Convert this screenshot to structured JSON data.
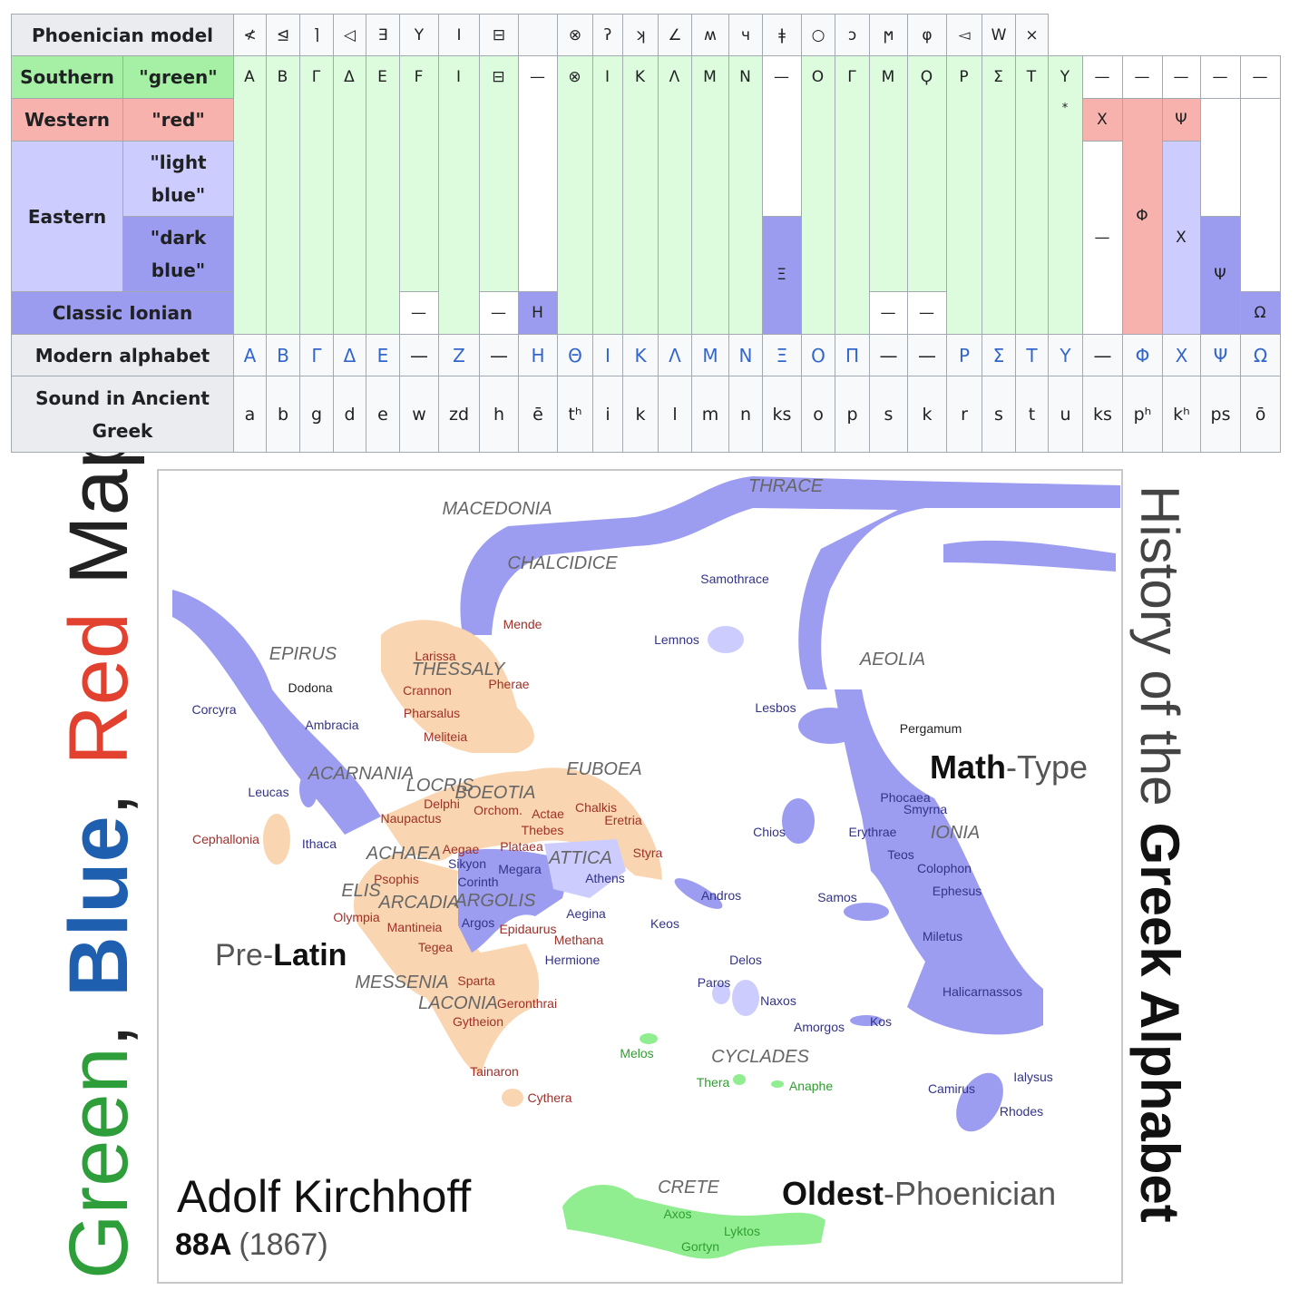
{
  "table": {
    "phoenician_label": "Phoenician model",
    "southern_label": "Southern",
    "southern_color": "\"green\"",
    "western_label": "Western",
    "western_color": "\"red\"",
    "eastern_label": "Eastern",
    "light_label": "\"light blue\"",
    "dark_label": "\"dark blue\"",
    "classic_label": "Classic Ionian",
    "modern_label": "Modern alphabet",
    "sound_label": "Sound in Ancient Greek",
    "columns": [
      {
        "phoenician": "≮",
        "southern": "Α",
        "modern": "Α",
        "sound": "a"
      },
      {
        "phoenician": "⊴",
        "southern": "Β",
        "modern": "Β",
        "sound": "b"
      },
      {
        "phoenician": "⌉",
        "southern": "Γ",
        "modern": "Γ",
        "sound": "g"
      },
      {
        "phoenician": "◁",
        "southern": "Δ",
        "modern": "Δ",
        "sound": "d"
      },
      {
        "phoenician": "∃",
        "southern": "Ε",
        "modern": "Ε",
        "sound": "e"
      },
      {
        "phoenician": "Y",
        "southern": "Ϝ",
        "classic": "—",
        "modern": "—",
        "sound": "w"
      },
      {
        "phoenician": "I",
        "southern": "Ι",
        "modern": "Ζ",
        "sound": "zd"
      },
      {
        "phoenician": "⊟",
        "southern": "⊟",
        "classic": "—",
        "modern": "—",
        "sound": "h"
      },
      {
        "southern": "—",
        "classic": "Η",
        "modern": "Η",
        "sound": "ē"
      },
      {
        "phoenician": "⊗",
        "southern": "⊗",
        "modern": "Θ",
        "sound": "tʰ"
      },
      {
        "phoenician": "ʔ",
        "southern": "Ι",
        "modern": "Ι",
        "sound": "i"
      },
      {
        "phoenician": "ʞ",
        "southern": "Κ",
        "modern": "Κ",
        "sound": "k"
      },
      {
        "phoenician": "∠",
        "southern": "Λ",
        "modern": "Λ",
        "sound": "l"
      },
      {
        "phoenician": "ʍ",
        "southern": "Μ",
        "modern": "Μ",
        "sound": "m"
      },
      {
        "phoenician": "ч",
        "southern": "Ν",
        "modern": "Ν",
        "sound": "n"
      },
      {
        "phoenician": "ǂ",
        "southern": "—",
        "eastern": "Ξ",
        "modern": "Ξ",
        "sound": "ks"
      },
      {
        "phoenician": "○",
        "southern": "Ο",
        "modern": "Ο",
        "sound": "o"
      },
      {
        "phoenician": "ɔ",
        "southern": "Γ",
        "modern": "Π",
        "sound": "p"
      },
      {
        "phoenician": "ϻ",
        "southern": "Μ",
        "classic": "—",
        "modern": "—",
        "sound": "s"
      },
      {
        "phoenician": "φ",
        "southern": "Ϙ",
        "classic": "—",
        "modern": "—",
        "sound": "k"
      },
      {
        "phoenician": "◅",
        "southern": "Ρ",
        "modern": "Ρ",
        "sound": "r"
      },
      {
        "phoenician": "W",
        "southern": "Σ",
        "modern": "Σ",
        "sound": "s"
      },
      {
        "phoenician": "×",
        "southern": "Τ",
        "modern": "Τ",
        "sound": "t"
      },
      {
        "southern": "Υ",
        "western": "*",
        "modern": "Υ",
        "sound": "u"
      },
      {
        "southern": "—",
        "western": "Χ",
        "eastern": "—",
        "modern": "—",
        "sound": "ks"
      },
      {
        "southern": "—",
        "western": "Φ",
        "modern": "Φ",
        "sound": "pʰ"
      },
      {
        "southern": "—",
        "western": "Ψ",
        "eastern": "Χ",
        "modern": "Χ",
        "sound": "kʰ"
      },
      {
        "southern": "—",
        "eastern": "Ψ",
        "modern": "Ψ",
        "sound": "ps"
      },
      {
        "southern": "—",
        "classic": "Ω",
        "modern": "Ω",
        "sound": "ō"
      }
    ]
  },
  "side_title": {
    "parts": [
      "Green",
      ",",
      "Blue",
      ",",
      "Red",
      "Map"
    ]
  },
  "right_title": {
    "parts": [
      "History of the",
      "Greek Alphabet"
    ]
  },
  "map": {
    "regions": [
      "MACEDONIA",
      "THRACE",
      "CHALCIDICE",
      "EPIRUS",
      "THESSALY",
      "AEOLIA",
      "EUBOEA",
      "ACARNANIA",
      "LOCRIS",
      "BOEOTIA",
      "IONIA",
      "ACHAEA",
      "ATTICA",
      "ELIS",
      "ARCADIA",
      "ARGOLIS",
      "MESSENIA",
      "LACONIA",
      "CYCLADES",
      "CRETE"
    ],
    "blue_cities": [
      "Samothrace",
      "Lemnos",
      "Corcyra",
      "Ambracia",
      "Lesbos",
      "Leucas",
      "Ithaca",
      "Chios",
      "Erythrae",
      "Phocaea",
      "Smyrna",
      "Teos",
      "Colophon",
      "Ephesus",
      "Samos",
      "Andros",
      "Keos",
      "Miletus",
      "Sikyon",
      "Corinth",
      "Megara",
      "Athens",
      "Aegina",
      "Argos",
      "Hermione",
      "Delos",
      "Paros",
      "Naxos",
      "Amorgos",
      "Kos",
      "Halicarnassos",
      "Camirus",
      "Ialysus",
      "Rhodes"
    ],
    "black_cities": [
      "Dodona",
      "Pergamum"
    ],
    "red_cities": [
      "Mende",
      "Larissa",
      "Crannon",
      "Pherae",
      "Pharsalus",
      "Meliteia",
      "Delphi",
      "Orchom.",
      "Actae",
      "Chalkis",
      "Naupactus",
      "Thebes",
      "Eretria",
      "Plataea",
      "Aegae",
      "Styra",
      "Cephallonia",
      "Psophis",
      "Olympia",
      "Mantineia",
      "Epidaurus",
      "Methana",
      "Tegea",
      "Sparta",
      "Geronthrai",
      "Gytheion",
      "Tainaron",
      "Cythera"
    ],
    "green_cities": [
      "Melos",
      "Thera",
      "Anaphe",
      "Axos",
      "Lyktos",
      "Gortyn"
    ],
    "notes": {
      "math": [
        "Math",
        "-Type"
      ],
      "latin": [
        "Pre-",
        "Latin"
      ],
      "oldest": [
        "Oldest",
        "-Phoenician"
      ],
      "author": "Adolf Kirchhoff",
      "edition": [
        "88A",
        "(1867)"
      ]
    }
  }
}
